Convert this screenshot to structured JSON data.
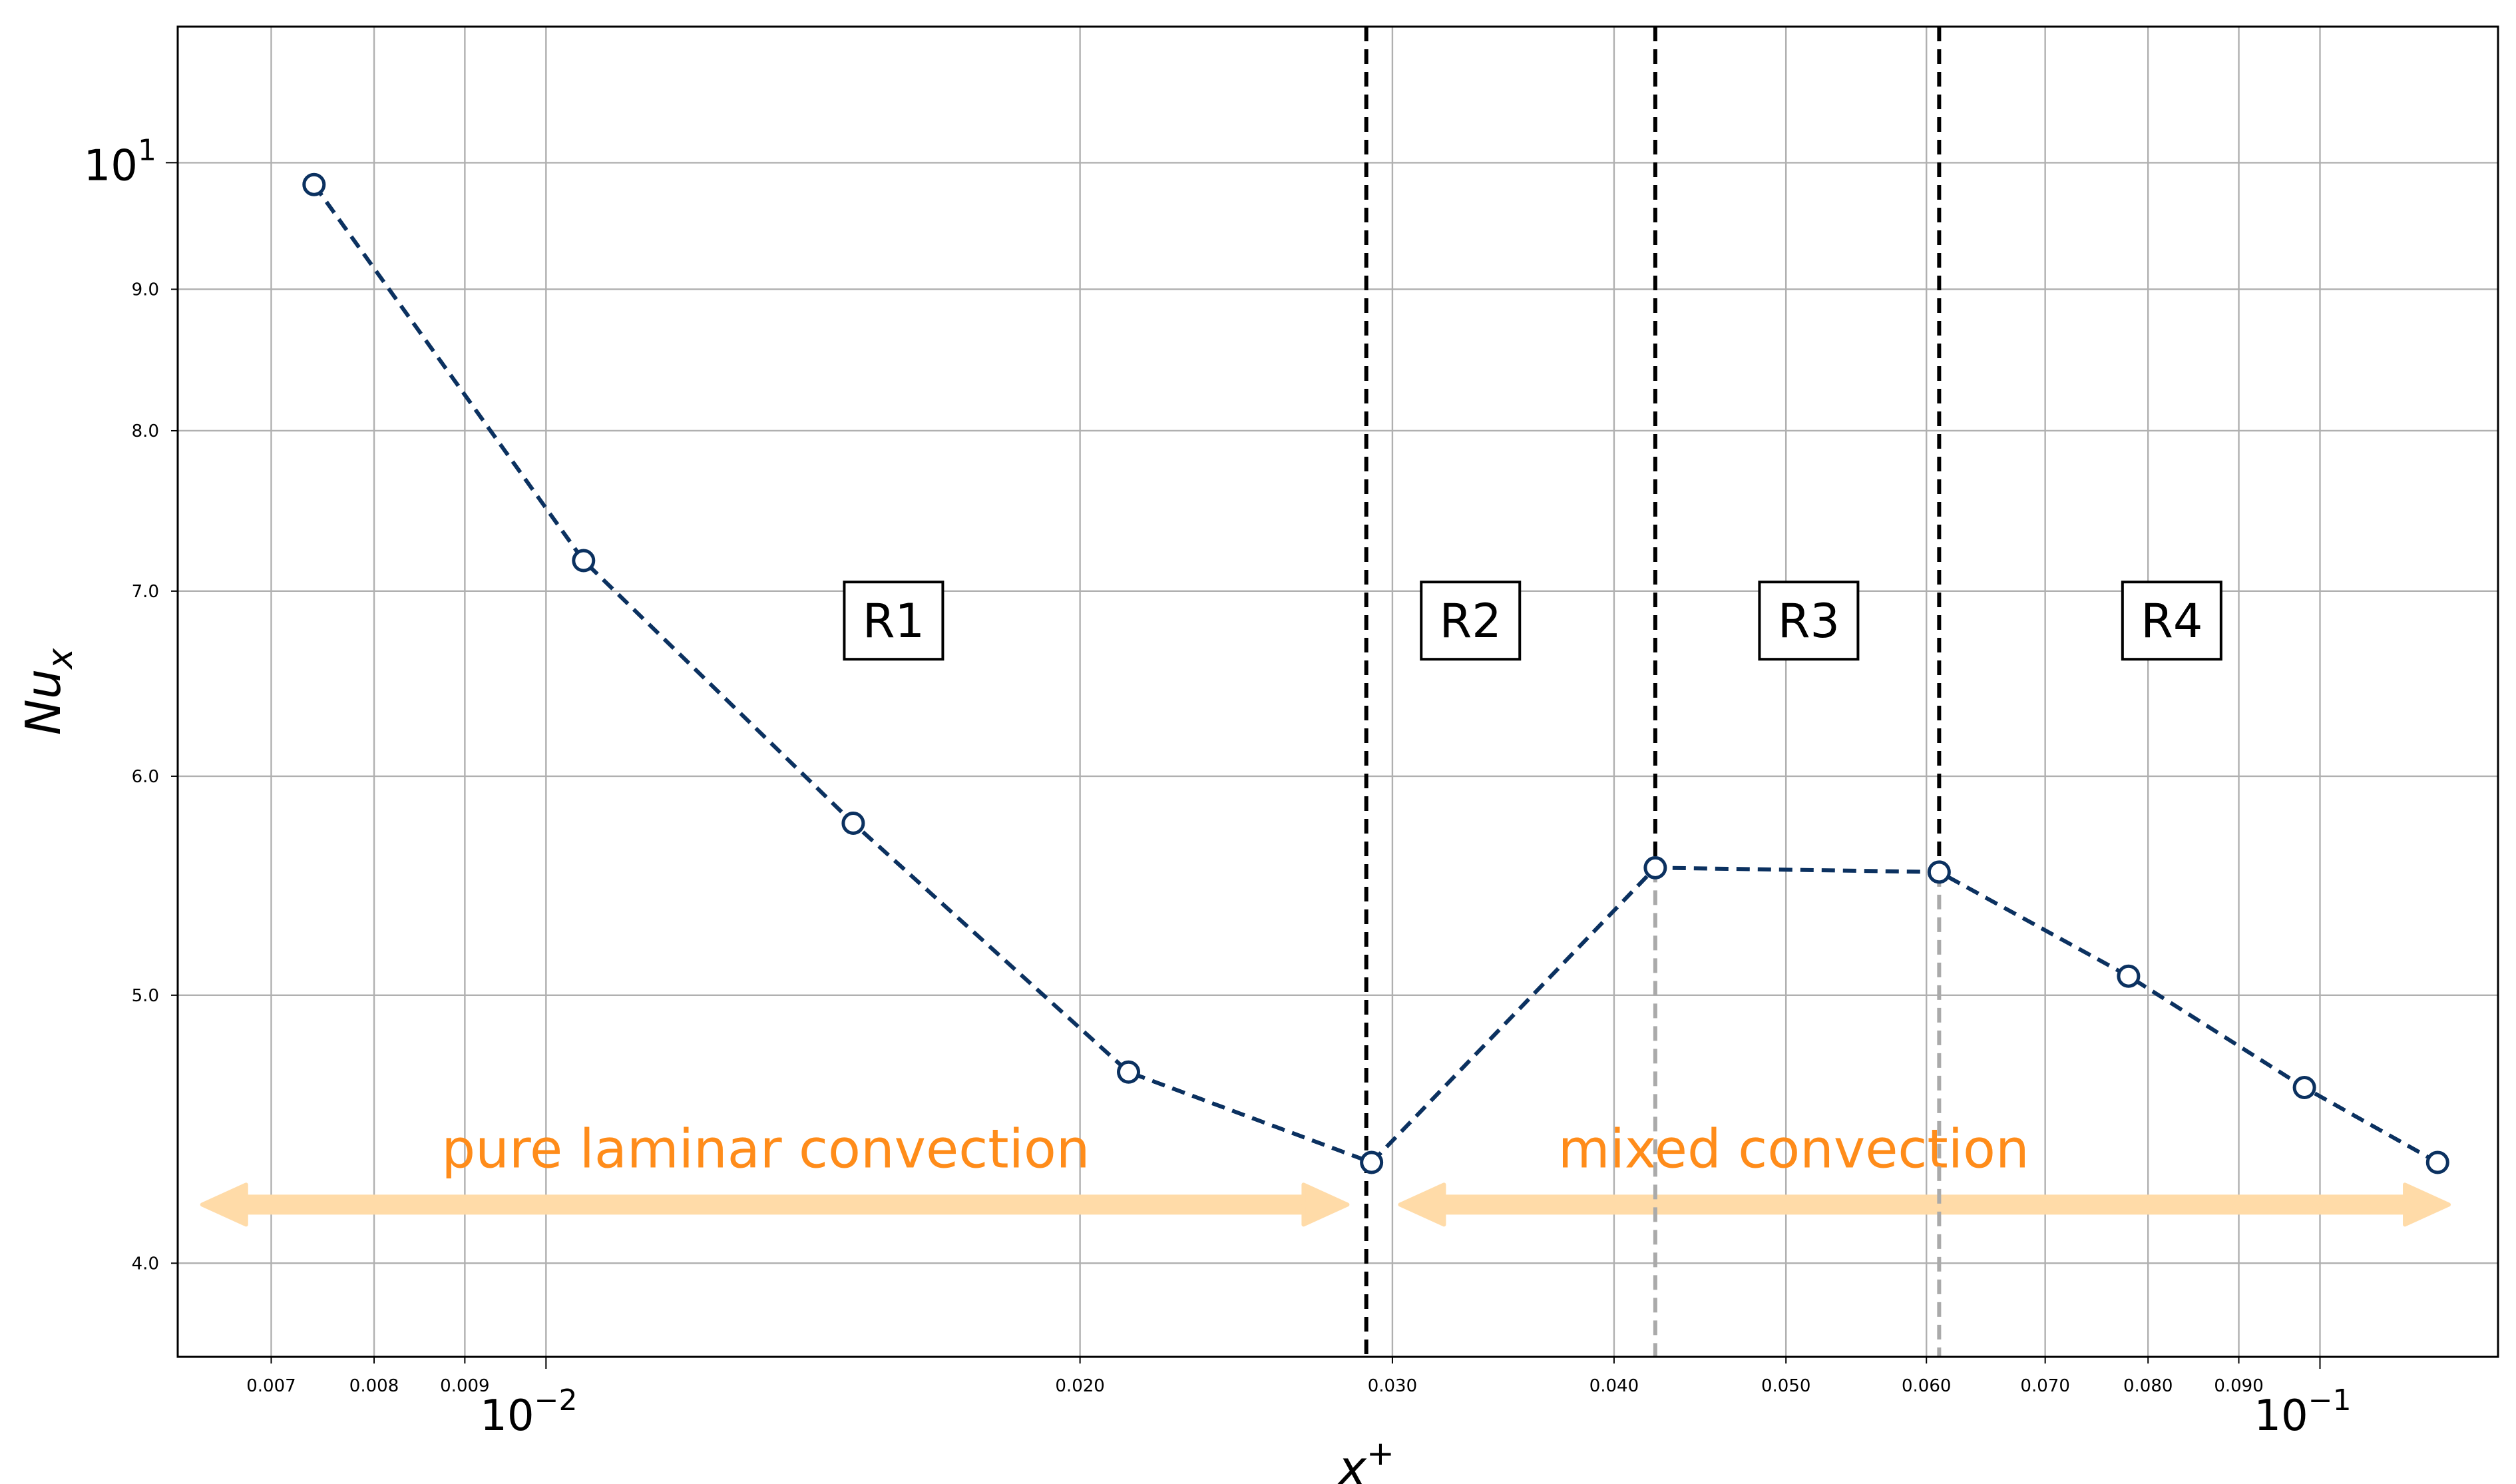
{
  "chart_data": {
    "type": "line",
    "xlabel": "x⁺",
    "ylabel": "Nu_x",
    "x_scale": "log",
    "y_scale": "log",
    "xlim": [
      0.0062,
      0.126
    ],
    "ylim": [
      3.7,
      11.2
    ],
    "grid": true,
    "series": [
      {
        "name": "",
        "color": "#0b3160",
        "line_style": "dashed",
        "marker": "open-circle",
        "x": [
          0.0074,
          0.0105,
          0.0149,
          0.0213,
          0.0292,
          0.0422,
          0.061,
          0.078,
          0.098,
          0.1165
        ],
        "y": [
          9.82,
          7.18,
          5.77,
          4.69,
          4.35,
          5.56,
          5.54,
          5.08,
          4.63,
          4.35
        ]
      }
    ],
    "x_ticks": {
      "minor_values": [
        0.007,
        0.008,
        0.009,
        0.02,
        0.03,
        0.04,
        0.05,
        0.06,
        0.07,
        0.08,
        0.09
      ],
      "minor_labels": [
        "0.007",
        "0.008",
        "0.009",
        "0.020",
        "0.030",
        "0.040",
        "0.050",
        "0.060",
        "0.070",
        "0.080",
        "0.090"
      ],
      "major_values": [
        0.01,
        0.1
      ],
      "major_base": [
        "10",
        "10"
      ],
      "major_exponent": [
        "−2",
        "−1"
      ]
    },
    "y_ticks": {
      "minor_values": [
        4,
        5,
        6,
        7,
        8,
        9
      ],
      "minor_labels": [
        "4.0",
        "5.0",
        "6.0",
        "7.0",
        "8.0",
        "9.0"
      ],
      "major_values": [
        10
      ],
      "major_base": [
        "10"
      ],
      "major_exponent": [
        "1"
      ]
    },
    "region_boundaries": [
      {
        "x": 0.029,
        "color": "#000000"
      },
      {
        "x": 0.0422,
        "color": "#000000",
        "lower_color": "#aaaaaa"
      },
      {
        "x": 0.061,
        "color": "#000000",
        "lower_color": "#aaaaaa"
      }
    ],
    "region_labels": [
      {
        "text": "R1",
        "x": 0.0157
      },
      {
        "text": "R2",
        "x": 0.0332
      },
      {
        "text": "R3",
        "x": 0.0515
      },
      {
        "text": "R4",
        "x": 0.0825
      }
    ],
    "region_label_y": 6.83,
    "annotations": [
      {
        "text": "pure laminar convection",
        "label_x": 0.0133,
        "label_y": 4.4,
        "arrow_from": 0.0064,
        "arrow_to": 0.0283,
        "arrow_y": 4.2
      },
      {
        "text": "mixed convection",
        "label_x": 0.0505,
        "label_y": 4.4,
        "arrow_from": 0.0303,
        "arrow_to": 0.1182,
        "arrow_y": 4.2
      }
    ],
    "annotation_text_color": "#ff8c1a",
    "annotation_arrow_color": "#ffdba8"
  }
}
